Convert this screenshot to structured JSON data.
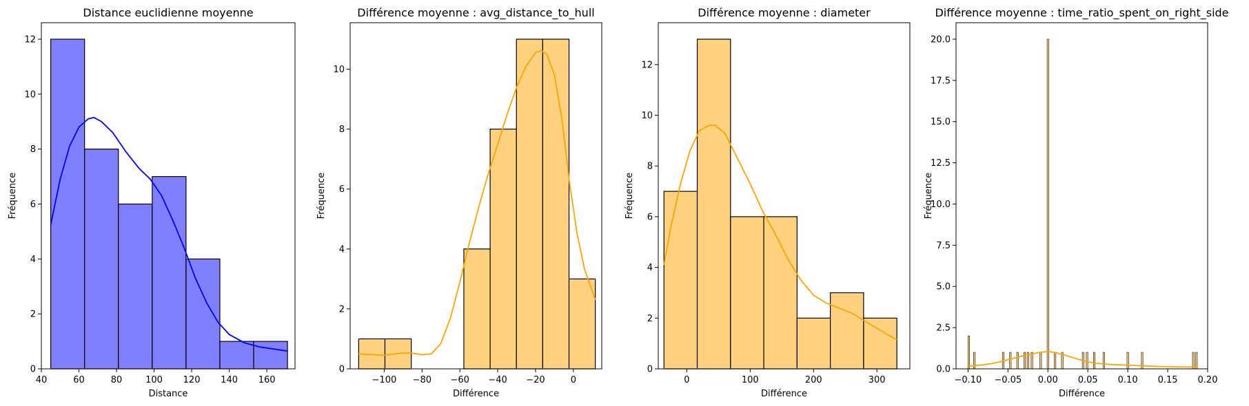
{
  "chart_data": [
    {
      "type": "bar",
      "title": "Distance euclidienne moyenne",
      "xlabel": "Distance",
      "ylabel": "Fréquence",
      "xlim": [
        40,
        175
      ],
      "ylim": [
        0,
        12.6
      ],
      "xticks": [
        40,
        60,
        80,
        100,
        120,
        140,
        160
      ],
      "xtick_labels": [
        "40",
        "60",
        "80",
        "100",
        "120",
        "140",
        "160"
      ],
      "yticks": [
        0,
        2,
        4,
        6,
        8,
        10,
        12
      ],
      "ytick_labels": [
        "0",
        "2",
        "4",
        "6",
        "8",
        "10",
        "12"
      ],
      "bar_color": "#8080ff",
      "kde_color": "#0000ff",
      "bins": [
        {
          "x0": 45,
          "x1": 63,
          "count": 12
        },
        {
          "x0": 63,
          "x1": 81,
          "count": 8
        },
        {
          "x0": 81,
          "x1": 99,
          "count": 6
        },
        {
          "x0": 99,
          "x1": 117,
          "count": 7
        },
        {
          "x0": 117,
          "x1": 135,
          "count": 4
        },
        {
          "x0": 135,
          "x1": 153,
          "count": 1
        },
        {
          "x0": 153,
          "x1": 171,
          "count": 1
        }
      ],
      "kde": [
        [
          45,
          5.25
        ],
        [
          50,
          6.9
        ],
        [
          55,
          8.1
        ],
        [
          60,
          8.8
        ],
        [
          65,
          9.1
        ],
        [
          68,
          9.15
        ],
        [
          72,
          9.0
        ],
        [
          78,
          8.6
        ],
        [
          85,
          7.9
        ],
        [
          92,
          7.3
        ],
        [
          98,
          6.9
        ],
        [
          104,
          6.3
        ],
        [
          110,
          5.4
        ],
        [
          116,
          4.4
        ],
        [
          122,
          3.3
        ],
        [
          128,
          2.4
        ],
        [
          134,
          1.7
        ],
        [
          140,
          1.25
        ],
        [
          148,
          0.95
        ],
        [
          156,
          0.8
        ],
        [
          164,
          0.72
        ],
        [
          171,
          0.65
        ]
      ]
    },
    {
      "type": "bar",
      "title": "Différence moyenne : avg_distance_to_hull",
      "xlabel": "Différence",
      "ylabel": "Fréquence",
      "xlim": [
        -118,
        15
      ],
      "ylim": [
        0,
        11.55
      ],
      "xticks": [
        -100,
        -80,
        -60,
        -40,
        -20,
        0
      ],
      "xtick_labels": [
        "−100",
        "−80",
        "−60",
        "−40",
        "−20",
        "0"
      ],
      "yticks": [
        0,
        2,
        4,
        6,
        8,
        10
      ],
      "ytick_labels": [
        "0",
        "2",
        "4",
        "6",
        "8",
        "10"
      ],
      "bar_color": "#ffd280",
      "kde_color": "#ffa500",
      "bins": [
        {
          "x0": -113.5,
          "x1": -99.6,
          "count": 1
        },
        {
          "x0": -99.6,
          "x1": -85.7,
          "count": 1
        },
        {
          "x0": -85.7,
          "x1": -71.8,
          "count": 0
        },
        {
          "x0": -71.8,
          "x1": -57.9,
          "count": 0
        },
        {
          "x0": -57.9,
          "x1": -44.0,
          "count": 4
        },
        {
          "x0": -44.0,
          "x1": -30.1,
          "count": 8
        },
        {
          "x0": -30.1,
          "x1": -16.2,
          "count": 11
        },
        {
          "x0": -16.2,
          "x1": -2.3,
          "count": 11
        },
        {
          "x0": -2.3,
          "x1": 11.6,
          "count": 3
        }
      ],
      "kde": [
        [
          -113.5,
          0.5
        ],
        [
          -108,
          0.48
        ],
        [
          -100,
          0.45
        ],
        [
          -92,
          0.52
        ],
        [
          -86,
          0.53
        ],
        [
          -80,
          0.47
        ],
        [
          -75,
          0.5
        ],
        [
          -70,
          0.85
        ],
        [
          -65,
          1.7
        ],
        [
          -60,
          2.9
        ],
        [
          -55,
          4.2
        ],
        [
          -50,
          5.4
        ],
        [
          -45,
          6.5
        ],
        [
          -40,
          7.5
        ],
        [
          -35,
          8.5
        ],
        [
          -30,
          9.4
        ],
        [
          -25,
          10.1
        ],
        [
          -20,
          10.55
        ],
        [
          -17,
          10.62
        ],
        [
          -14,
          10.5
        ],
        [
          -10,
          9.8
        ],
        [
          -6,
          8.3
        ],
        [
          -2,
          6.2
        ],
        [
          2,
          4.5
        ],
        [
          6,
          3.3
        ],
        [
          11.6,
          2.3
        ]
      ]
    },
    {
      "type": "bar",
      "title": "Différence moyenne : diameter",
      "xlabel": "Différence",
      "ylabel": "Fréquence",
      "xlim": [
        -45,
        352
      ],
      "ylim": [
        0,
        13.65
      ],
      "xticks": [
        0,
        100,
        200,
        300
      ],
      "xtick_labels": [
        "0",
        "100",
        "200",
        "300"
      ],
      "yticks": [
        0,
        2,
        4,
        6,
        8,
        10,
        12
      ],
      "ytick_labels": [
        "0",
        "2",
        "4",
        "6",
        "8",
        "10",
        "12"
      ],
      "bar_color": "#ffd280",
      "kde_color": "#ffa500",
      "bins": [
        {
          "x0": -36,
          "x1": 16.5,
          "count": 7
        },
        {
          "x0": 16.5,
          "x1": 69,
          "count": 13
        },
        {
          "x0": 69,
          "x1": 121.5,
          "count": 6
        },
        {
          "x0": 121.5,
          "x1": 174,
          "count": 6
        },
        {
          "x0": 174,
          "x1": 226.5,
          "count": 2
        },
        {
          "x0": 226.5,
          "x1": 279,
          "count": 3
        },
        {
          "x0": 279,
          "x1": 331.5,
          "count": 2
        }
      ],
      "kde": [
        [
          -36,
          4.1
        ],
        [
          -25,
          5.6
        ],
        [
          -10,
          7.3
        ],
        [
          5,
          8.6
        ],
        [
          20,
          9.4
        ],
        [
          35,
          9.6
        ],
        [
          45,
          9.6
        ],
        [
          60,
          9.3
        ],
        [
          80,
          8.3
        ],
        [
          100,
          7.3
        ],
        [
          120,
          6.2
        ],
        [
          140,
          5.3
        ],
        [
          160,
          4.3
        ],
        [
          180,
          3.5
        ],
        [
          200,
          2.9
        ],
        [
          220,
          2.6
        ],
        [
          240,
          2.4
        ],
        [
          260,
          2.2
        ],
        [
          280,
          1.9
        ],
        [
          300,
          1.6
        ],
        [
          320,
          1.3
        ],
        [
          331.5,
          1.15
        ]
      ]
    },
    {
      "type": "bar",
      "title": "Différence moyenne : time_ratio_spent_on_right_side",
      "xlabel": "Différence",
      "ylabel": "Fréquence",
      "xlim": [
        -0.115,
        0.2
      ],
      "ylim": [
        0,
        21
      ],
      "xticks": [
        -0.1,
        -0.05,
        0.0,
        0.05,
        0.1,
        0.15,
        0.2
      ],
      "xtick_labels": [
        "−0.10",
        "−0.05",
        "0.00",
        "0.05",
        "0.10",
        "0.15",
        "0.20"
      ],
      "yticks": [
        0,
        2.5,
        5,
        7.5,
        10,
        12.5,
        15,
        17.5,
        20
      ],
      "ytick_labels": [
        "0.0",
        "2.5",
        "5.0",
        "7.5",
        "10.0",
        "12.5",
        "15.0",
        "17.5",
        "20.0"
      ],
      "bar_color": "#ffd280",
      "kde_color": "#ffa500",
      "bins": [
        {
          "x0": -0.1,
          "x1": -0.098,
          "count": 2
        },
        {
          "x0": -0.093,
          "x1": -0.091,
          "count": 1
        },
        {
          "x0": -0.057,
          "x1": -0.055,
          "count": 1
        },
        {
          "x0": -0.048,
          "x1": -0.046,
          "count": 1
        },
        {
          "x0": -0.039,
          "x1": -0.037,
          "count": 1
        },
        {
          "x0": -0.03,
          "x1": -0.028,
          "count": 1
        },
        {
          "x0": -0.026,
          "x1": -0.024,
          "count": 1
        },
        {
          "x0": -0.021,
          "x1": -0.019,
          "count": 1
        },
        {
          "x0": -0.01,
          "x1": -0.008,
          "count": 1
        },
        {
          "x0": -0.001,
          "x1": 0.001,
          "count": 20
        },
        {
          "x0": 0.008,
          "x1": 0.01,
          "count": 1
        },
        {
          "x0": 0.017,
          "x1": 0.019,
          "count": 1
        },
        {
          "x0": 0.043,
          "x1": 0.045,
          "count": 1
        },
        {
          "x0": 0.048,
          "x1": 0.05,
          "count": 1
        },
        {
          "x0": 0.057,
          "x1": 0.059,
          "count": 1
        },
        {
          "x0": 0.069,
          "x1": 0.071,
          "count": 1
        },
        {
          "x0": 0.099,
          "x1": 0.101,
          "count": 1
        },
        {
          "x0": 0.117,
          "x1": 0.119,
          "count": 1
        },
        {
          "x0": 0.181,
          "x1": 0.183,
          "count": 1
        },
        {
          "x0": 0.185,
          "x1": 0.187,
          "count": 1
        }
      ],
      "kde": [
        [
          -0.1,
          0.15
        ],
        [
          -0.09,
          0.2
        ],
        [
          -0.08,
          0.25
        ],
        [
          -0.07,
          0.32
        ],
        [
          -0.06,
          0.42
        ],
        [
          -0.05,
          0.55
        ],
        [
          -0.04,
          0.68
        ],
        [
          -0.03,
          0.8
        ],
        [
          -0.02,
          0.9
        ],
        [
          -0.01,
          1.0
        ],
        [
          0.0,
          1.05
        ],
        [
          0.01,
          0.98
        ],
        [
          0.02,
          0.85
        ],
        [
          0.03,
          0.7
        ],
        [
          0.04,
          0.55
        ],
        [
          0.05,
          0.42
        ],
        [
          0.06,
          0.34
        ],
        [
          0.08,
          0.26
        ],
        [
          0.1,
          0.22
        ],
        [
          0.12,
          0.18
        ],
        [
          0.14,
          0.14
        ],
        [
          0.16,
          0.12
        ],
        [
          0.18,
          0.11
        ],
        [
          0.188,
          0.11
        ]
      ]
    }
  ]
}
